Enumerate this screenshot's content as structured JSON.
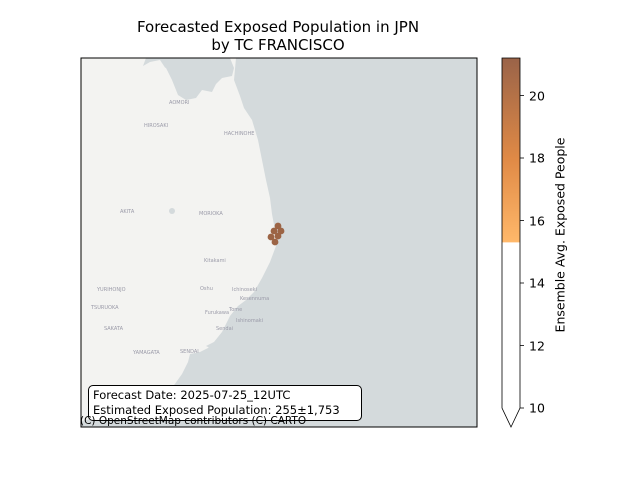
{
  "title": {
    "line1": "Forecasted Exposed Population in JPN",
    "line2": "by TC FRANCISCO"
  },
  "map": {
    "place_labels": [
      "AOMORI",
      "HIROSAKI",
      "HACHINOHE",
      "AKITA",
      "MORIOKA",
      "Kitakami",
      "Oshu",
      "Ichinoseki",
      "Kesennuma",
      "Ishinomaki",
      "Sendai",
      "YURIHONJO",
      "TSURUOKA",
      "SAKATA",
      "YAMAGATA",
      "SENDAI",
      "Tome",
      "Furukawa"
    ],
    "land_color": "#f3f3f1",
    "sea_color": "#d4dadc",
    "attribution": "(C) OpenStreetMap contributors (C) CARTO"
  },
  "exposure_color": "#9c6445",
  "info_box": {
    "forecast_date": "Forecast Date: 2025-07-25_12UTC",
    "estimated_population": "Estimated Exposed Population: 255±1,753"
  },
  "colorbar": {
    "label": "Ensemble Avg. Exposed People",
    "ticks": [
      10,
      12,
      14,
      16,
      18,
      20
    ],
    "range": [
      10,
      21.2
    ],
    "threshold": 15.3,
    "colors": {
      "low": "#ffb86a",
      "mid": "#e08a46",
      "high": "#9a6348",
      "below": "#ffffff"
    }
  }
}
